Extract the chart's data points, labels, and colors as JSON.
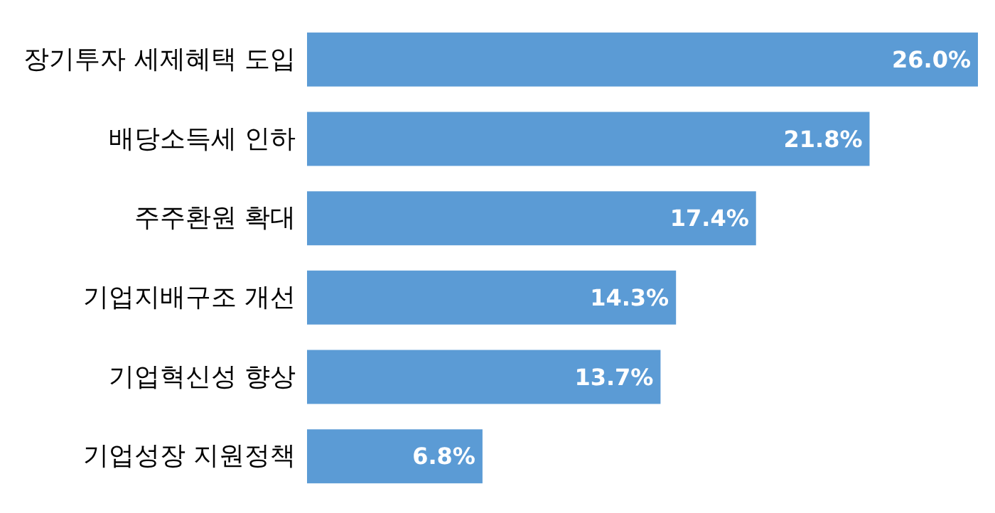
{
  "chart_data": {
    "type": "bar",
    "orientation": "horizontal",
    "categories": [
      "장기투자 세제혜택 도입",
      "배당소득세 인하",
      "주주환원 확대",
      "기업지배구조 개선",
      "기업혁신성 향상",
      "기업성장 지원정책"
    ],
    "values": [
      26.0,
      21.8,
      17.4,
      14.3,
      13.7,
      6.8
    ],
    "value_labels": [
      "26.0%",
      "21.8%",
      "17.4%",
      "14.3%",
      "13.7%",
      "6.8%"
    ],
    "color": "#5b9bd5"
  }
}
